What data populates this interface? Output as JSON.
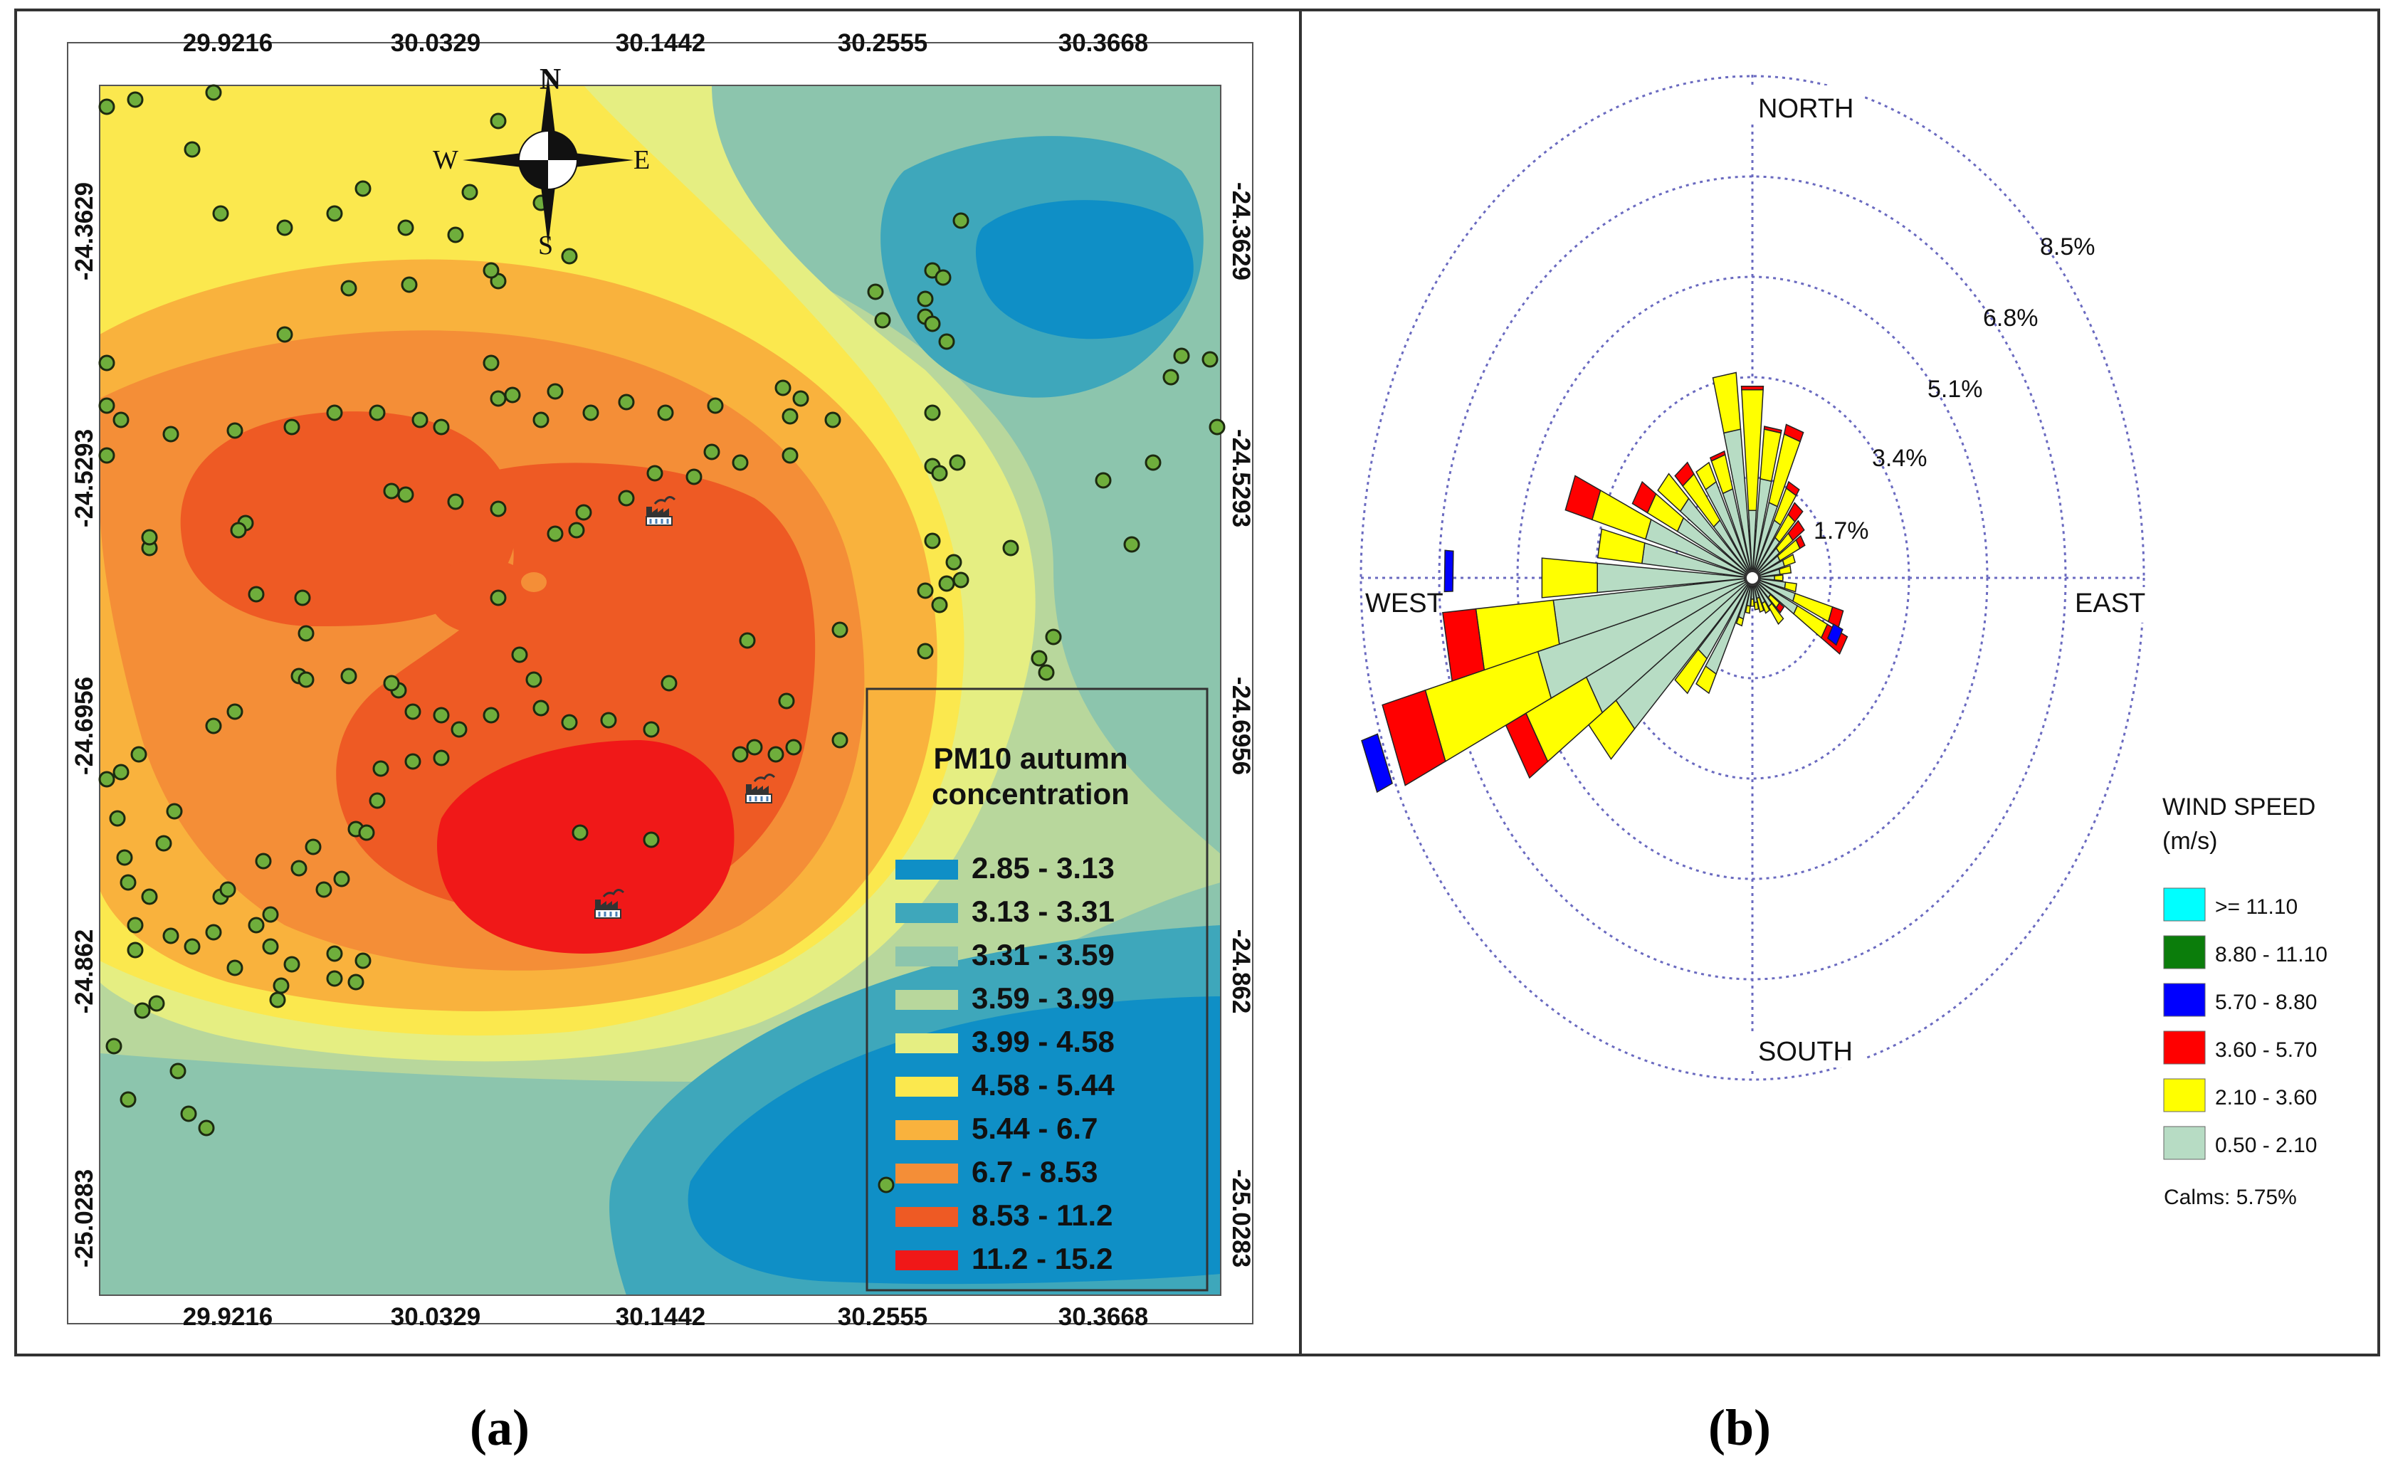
{
  "panel_a": {
    "caption": "(a)",
    "x_ticks": [
      "29.9216",
      "30.0329",
      "30.1442",
      "30.2555",
      "30.3668"
    ],
    "y_ticks": [
      "-24.3629",
      "-24.5293",
      "-24.6956",
      "-24.862",
      "-25.0283"
    ],
    "compass": {
      "n": "N",
      "s": "S",
      "e": "E",
      "w": "W"
    },
    "legend": {
      "title_line1": "PM10 autumn",
      "title_line2": "concentration",
      "classes": [
        {
          "label": "2.85 - 3.13",
          "color": "#0f8fc6"
        },
        {
          "label": "3.13 - 3.31",
          "color": "#3ea7bb"
        },
        {
          "label": "3.31 - 3.59",
          "color": "#8cc5ad"
        },
        {
          "label": "3.59 - 3.99",
          "color": "#b8d79c"
        },
        {
          "label": "3.99 - 4.58",
          "color": "#e5ee82"
        },
        {
          "label": "4.58 - 5.44",
          "color": "#fbe84e"
        },
        {
          "label": "5.44 - 6.7",
          "color": "#f9b23d"
        },
        {
          "label": "6.7 - 8.53",
          "color": "#f48e37"
        },
        {
          "label": "8.53 - 11.2",
          "color": "#ee5a24"
        },
        {
          "label": "11.2 - 15.2",
          "color": "#f01818"
        }
      ]
    }
  },
  "panel_b": {
    "caption": "(b)",
    "directions": {
      "north": "NORTH",
      "south": "SOUTH",
      "east": "EAST",
      "west": "WEST"
    },
    "rings": [
      "1.7%",
      "3.4%",
      "5.1%",
      "6.8%",
      "8.5%"
    ],
    "legend": {
      "title_line1": "WIND SPEED",
      "title_line2": "(m/s)",
      "classes": [
        {
          "label": ">= 11.10",
          "color": "#00ffff"
        },
        {
          "label": "8.80 - 11.10",
          "color": "#0b7d0b"
        },
        {
          "label": "5.70 - 8.80",
          "color": "#0000ff"
        },
        {
          "label": "3.60 - 5.70",
          "color": "#ff0000"
        },
        {
          "label": "2.10 - 3.60",
          "color": "#ffff00"
        },
        {
          "label": "0.50 - 2.10",
          "color": "#b7dcc4"
        }
      ],
      "calms": "Calms: 5.75%"
    }
  }
}
